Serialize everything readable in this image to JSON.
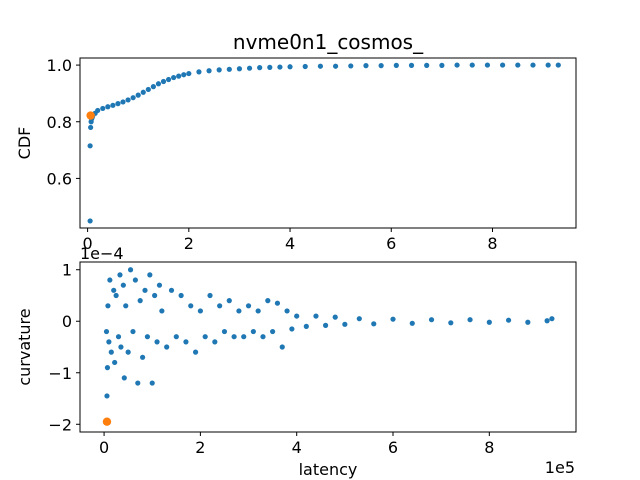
{
  "figure": {
    "title": "nvme0n1_cosmos_",
    "x_multiplier": "1e5",
    "y_multiplier_bottom": "1e−4"
  },
  "colors": {
    "series": "#1f77b4",
    "highlight": "#ff7f0e",
    "axes": "#000000"
  },
  "chart_data": [
    {
      "type": "scatter",
      "title": "nvme0n1_cosmos_",
      "xlabel": "",
      "ylabel": "CDF",
      "xlim": [
        -0.15,
        9.65
      ],
      "ylim": [
        0.425,
        1.025
      ],
      "xticks": [
        0,
        2,
        4,
        6,
        8
      ],
      "xtick_labels": [
        "0",
        "2",
        "4",
        "6",
        "8"
      ],
      "yticks": [
        0.6,
        0.8,
        1.0
      ],
      "ytick_labels": [
        "0.6",
        "0.8",
        "1.0"
      ],
      "grid": false,
      "series": [
        {
          "color": "#1f77b4",
          "marker_size": 4,
          "x": [
            0.05,
            0.05,
            0.06,
            0.07,
            0.08,
            0.09,
            0.1,
            0.15,
            0.2,
            0.3,
            0.4,
            0.5,
            0.6,
            0.7,
            0.8,
            0.9,
            1.0,
            1.1,
            1.2,
            1.3,
            1.4,
            1.5,
            1.6,
            1.7,
            1.8,
            1.9,
            2.0,
            2.2,
            2.4,
            2.6,
            2.8,
            3.0,
            3.2,
            3.4,
            3.6,
            3.8,
            4.0,
            4.3,
            4.6,
            4.9,
            5.2,
            5.5,
            5.8,
            6.1,
            6.4,
            6.7,
            7.0,
            7.3,
            7.6,
            7.9,
            8.2,
            8.5,
            8.8,
            9.1,
            9.3
          ],
          "y": [
            0.45,
            0.715,
            0.78,
            0.8,
            0.81,
            0.815,
            0.82,
            0.83,
            0.84,
            0.847,
            0.853,
            0.858,
            0.864,
            0.87,
            0.877,
            0.885,
            0.894,
            0.904,
            0.914,
            0.924,
            0.934,
            0.942,
            0.949,
            0.956,
            0.961,
            0.966,
            0.97,
            0.976,
            0.98,
            0.983,
            0.985,
            0.987,
            0.989,
            0.991,
            0.992,
            0.993,
            0.994,
            0.995,
            0.996,
            0.996,
            0.997,
            0.998,
            0.998,
            0.999,
            0.999,
            0.999,
            0.999,
            1.0,
            1.0,
            1.0,
            1.0,
            1.0,
            1.0,
            1.0,
            1.0
          ]
        }
      ],
      "highlight_points": [
        {
          "x": 0.06,
          "y": 0.822,
          "color": "#ff7f0e"
        }
      ]
    },
    {
      "type": "scatter",
      "title": "",
      "xlabel": "latency",
      "ylabel": "curvature",
      "ylabel_scale": "1e−4",
      "xlim": [
        -0.5,
        9.8
      ],
      "ylim": [
        -2.15,
        1.15
      ],
      "xticks": [
        0,
        2,
        4,
        6,
        8
      ],
      "xtick_labels": [
        "0",
        "2",
        "4",
        "6",
        "8"
      ],
      "yticks": [
        -2,
        -1,
        0,
        1
      ],
      "ytick_labels": [
        "−2",
        "−1",
        "0",
        "1"
      ],
      "grid": false,
      "series": [
        {
          "color": "#1f77b4",
          "marker_size": 4,
          "x": [
            0.05,
            0.06,
            0.07,
            0.08,
            0.1,
            0.12,
            0.15,
            0.2,
            0.22,
            0.25,
            0.3,
            0.33,
            0.35,
            0.4,
            0.42,
            0.45,
            0.5,
            0.55,
            0.6,
            0.65,
            0.7,
            0.75,
            0.8,
            0.85,
            0.9,
            0.95,
            1.0,
            1.05,
            1.1,
            1.15,
            1.2,
            1.3,
            1.4,
            1.5,
            1.6,
            1.7,
            1.8,
            1.9,
            2.0,
            2.1,
            2.2,
            2.3,
            2.4,
            2.5,
            2.6,
            2.7,
            2.8,
            2.9,
            3.0,
            3.1,
            3.2,
            3.3,
            3.4,
            3.5,
            3.6,
            3.7,
            3.8,
            3.9,
            4.0,
            4.2,
            4.4,
            4.6,
            4.8,
            5.0,
            5.3,
            5.6,
            6.0,
            6.4,
            6.8,
            7.2,
            7.6,
            8.0,
            8.4,
            8.8,
            9.2,
            9.3
          ],
          "y": [
            -0.2,
            -1.45,
            -0.9,
            0.3,
            -0.4,
            0.8,
            -0.6,
            0.6,
            -0.8,
            0.5,
            -0.3,
            0.9,
            -0.5,
            0.7,
            -1.1,
            0.3,
            -0.6,
            1.0,
            -0.2,
            0.8,
            -1.2,
            0.4,
            -0.7,
            0.6,
            -0.3,
            0.9,
            -1.2,
            0.5,
            -0.4,
            0.7,
            0.2,
            -0.5,
            0.6,
            -0.3,
            0.5,
            -0.4,
            0.3,
            -0.6,
            0.2,
            -0.3,
            0.5,
            -0.4,
            0.3,
            -0.2,
            0.4,
            -0.3,
            0.2,
            -0.3,
            0.3,
            -0.2,
            0.2,
            -0.3,
            0.4,
            -0.2,
            0.35,
            -0.5,
            0.2,
            -0.15,
            0.1,
            -0.1,
            0.1,
            -0.08,
            0.08,
            -0.06,
            0.05,
            -0.05,
            0.04,
            -0.04,
            0.03,
            -0.03,
            0.03,
            -0.02,
            0.02,
            -0.02,
            0.01,
            0.05
          ]
        }
      ],
      "highlight_points": [
        {
          "x": 0.06,
          "y": -1.95,
          "color": "#ff7f0e"
        }
      ]
    }
  ]
}
